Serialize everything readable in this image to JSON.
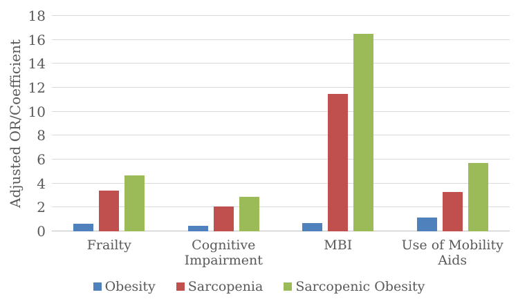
{
  "chart_data": {
    "type": "bar",
    "title": "",
    "xlabel": "",
    "ylabel": "Adjusted OR/Coefficient",
    "ylim": [
      0,
      18
    ],
    "yticks": [
      0,
      2,
      4,
      6,
      8,
      10,
      12,
      14,
      16,
      18
    ],
    "categories": [
      "Frailty",
      "Cognitive Impairment",
      "MBI",
      "Use of Mobility Aids"
    ],
    "series": [
      {
        "name": "Obesity",
        "color": "#4F81BD",
        "values": [
          0.65,
          0.45,
          0.7,
          1.15
        ]
      },
      {
        "name": "Sarcopenia",
        "color": "#C0504D",
        "values": [
          3.4,
          2.1,
          11.5,
          3.3
        ]
      },
      {
        "name": "Sarcopenic Obesity",
        "color": "#9BBB59",
        "values": [
          4.7,
          2.9,
          16.5,
          5.7
        ]
      }
    ],
    "grid": true,
    "legend_position": "bottom",
    "background_color": "#ffffff",
    "gridline_color": "#d9d9d9",
    "axis_line_color": "#bfbfbf",
    "text_color": "#595959"
  }
}
